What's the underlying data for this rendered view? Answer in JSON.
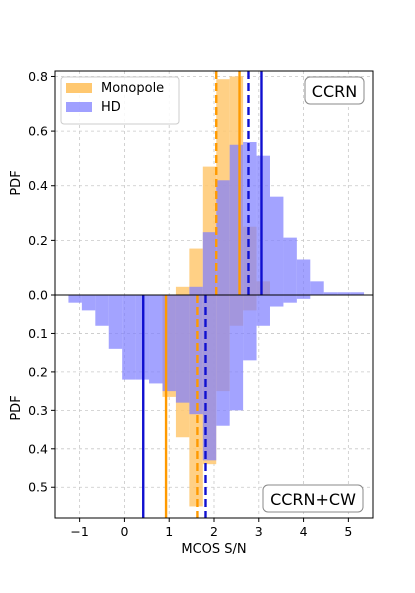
{
  "chart_data": {
    "type": "histogram",
    "xlabel": "MCOS S/N",
    "xlim": [
      -1.55,
      5.55
    ],
    "xticks": [
      "−1",
      "0",
      "1",
      "2",
      "3",
      "4",
      "5"
    ],
    "colors": {
      "monopole": "#ffc870",
      "hd": "#8080ff",
      "monopole_line": "#ff9a00",
      "hd_line": "#1010d0"
    },
    "top": {
      "tag": "CCRN",
      "ylabel": "PDF",
      "ylim": [
        0,
        0.82
      ],
      "yticks": [
        "0.0",
        "0.2",
        "0.4",
        "0.6",
        "0.8"
      ],
      "legend": [
        "Monopole",
        "HD"
      ],
      "bin_edges": [
        -1.25,
        -0.95,
        -0.65,
        -0.35,
        -0.05,
        0.25,
        0.55,
        0.85,
        1.15,
        1.45,
        1.75,
        2.05,
        2.35,
        2.65,
        2.95,
        3.25,
        3.55,
        3.85,
        4.15,
        4.45,
        4.75,
        5.05,
        5.35
      ],
      "series": [
        {
          "name": "Monopole",
          "values": [
            0,
            0,
            0,
            0,
            0,
            0,
            0,
            0,
            0.03,
            0.17,
            0.47,
            0.79,
            0.8,
            0.25,
            0.05,
            0,
            0,
            0,
            0,
            0,
            0,
            0
          ]
        },
        {
          "name": "HD",
          "values": [
            0,
            0,
            0,
            0,
            0,
            0,
            0,
            0,
            0,
            0.03,
            0.23,
            0.42,
            0.55,
            0.56,
            0.51,
            0.36,
            0.21,
            0.13,
            0.05,
            0.01,
            0.01,
            0.01
          ]
        }
      ],
      "vlines": [
        {
          "series": "Monopole",
          "x": 2.05,
          "style": "dashed"
        },
        {
          "series": "Monopole",
          "x": 2.57,
          "style": "solid"
        },
        {
          "series": "HD",
          "x": 2.77,
          "style": "dashed"
        },
        {
          "series": "HD",
          "x": 3.06,
          "style": "solid"
        }
      ]
    },
    "bottom": {
      "tag": "CCRN+CW",
      "ylabel": "PDF",
      "ylim": [
        0,
        0.58
      ],
      "inverted": true,
      "yticks": [
        "0.1",
        "0.2",
        "0.3",
        "0.4",
        "0.5"
      ],
      "bin_edges": [
        -1.25,
        -0.95,
        -0.65,
        -0.35,
        -0.05,
        0.25,
        0.55,
        0.85,
        1.15,
        1.45,
        1.75,
        2.05,
        2.35,
        2.65,
        2.95,
        3.25,
        3.55,
        3.85,
        4.15,
        4.45,
        4.75,
        5.05,
        5.35
      ],
      "series": [
        {
          "name": "Monopole",
          "values": [
            0,
            0,
            0,
            0,
            0,
            0,
            0,
            0.265,
            0.37,
            0.55,
            0.44,
            0.25,
            0.08,
            0.04,
            0,
            0,
            0,
            0,
            0,
            0,
            0,
            0
          ]
        },
        {
          "name": "HD",
          "values": [
            0.02,
            0.04,
            0.08,
            0.14,
            0.22,
            0.22,
            0.23,
            0.25,
            0.28,
            0.31,
            0.43,
            0.34,
            0.3,
            0.17,
            0.08,
            0.03,
            0.02,
            0.01,
            0,
            0,
            0,
            0
          ]
        }
      ],
      "vlines": [
        {
          "series": "Monopole",
          "x": 0.93,
          "style": "solid"
        },
        {
          "series": "Monopole",
          "x": 1.63,
          "style": "dashed"
        },
        {
          "series": "HD",
          "x": 0.42,
          "style": "solid"
        },
        {
          "series": "HD",
          "x": 1.81,
          "style": "dashed"
        }
      ]
    }
  }
}
